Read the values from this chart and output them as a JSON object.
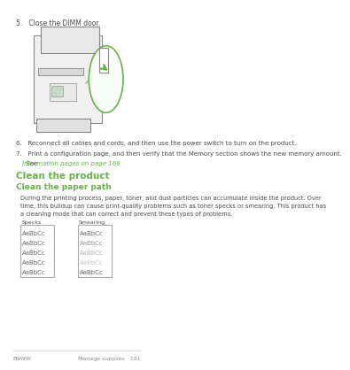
{
  "bg_color": "#ffffff",
  "page_color": "#ffffff",
  "text_color": "#4a4a4a",
  "green_color": "#6ab04c",
  "link_color": "#6ab04c",
  "step5_text": "5.   Close the DIMM door.",
  "step6_text": "6.   Reconnect all cables and cords, and then use the power switch to turn on the product.",
  "step7_line1": "7.   Print a configuration page, and then verify that the Memory section shows the new memory amount.",
  "step7_line2": "     See ",
  "step7_link": "Information pages on page 168",
  "step7_end": ".",
  "heading1": "Clean the product",
  "heading2": "Clean the paper path",
  "body_text": "During the printing process, paper, toner, and dust particles can accumulate inside the product. Over\ntime, this buildup can cause print-quality problems such as toner specks or smearing. This product has\na cleaning mode that can correct and prevent these types of problems.",
  "label_specks": "Specks",
  "label_smearing": "Smearing",
  "specks_lines": [
    "AaBbCc",
    "AaBbCc",
    "AaBbCc",
    "AaBbCc",
    "AaBbCc"
  ],
  "smearing_lines": [
    "AaBbCc",
    "AaBbCc",
    "AaBbCc",
    "AaBbCc",
    "AaBbCc"
  ],
  "footer_left": "ENWW",
  "footer_right": "Manage supplies   191"
}
